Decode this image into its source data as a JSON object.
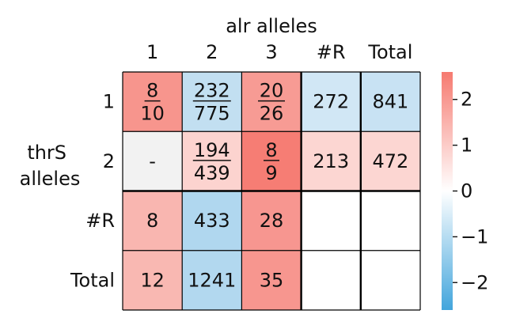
{
  "chart_data": {
    "type": "heatmap",
    "x_title": "alr alleles",
    "y_title_lines": [
      "thrS",
      "alleles"
    ],
    "col_labels": [
      "1",
      "2",
      "3",
      "#R",
      "Total"
    ],
    "row_labels": [
      "1",
      "2",
      "#R",
      "Total"
    ],
    "cells": [
      [
        {
          "num": "8",
          "den": "10",
          "color": "#f7958d"
        },
        {
          "num": "232",
          "den": "775",
          "color": "#c2dff1"
        },
        {
          "num": "20",
          "den": "26",
          "color": "#f79b94"
        },
        {
          "text": "272",
          "color": "#d1e7f5"
        },
        {
          "text": "841",
          "color": "#c8e2f3"
        }
      ],
      [
        {
          "text": "-",
          "color": "#f2f2f2"
        },
        {
          "num": "194",
          "den": "439",
          "color": "#fcd3cf"
        },
        {
          "num": "8",
          "den": "9",
          "color": "#f67d74"
        },
        {
          "text": "213",
          "color": "#fcd6d2"
        },
        {
          "text": "472",
          "color": "#fcd6d2"
        }
      ],
      [
        {
          "text": "8",
          "color": "#f9b6b0"
        },
        {
          "text": "433",
          "color": "#b0d7ef"
        },
        {
          "text": "28",
          "color": "#f79690"
        },
        {
          "text": "",
          "color": "#ffffff"
        },
        {
          "text": "",
          "color": "#ffffff"
        }
      ],
      [
        {
          "text": "12",
          "color": "#f9b8b2"
        },
        {
          "text": "1241",
          "color": "#b2d8ef"
        },
        {
          "text": "35",
          "color": "#f7968f"
        },
        {
          "text": "",
          "color": "#ffffff"
        },
        {
          "text": "",
          "color": "#ffffff"
        }
      ]
    ],
    "colorbar": {
      "ticks": [
        2,
        1,
        0,
        -1,
        -2
      ],
      "tick_labels": [
        "2",
        "1",
        "0",
        "−1",
        "−2"
      ],
      "range": [
        -2.6,
        2.6
      ],
      "color_high": "#f67a70",
      "color_mid": "#ffffff",
      "color_low": "#42a5dc"
    }
  }
}
